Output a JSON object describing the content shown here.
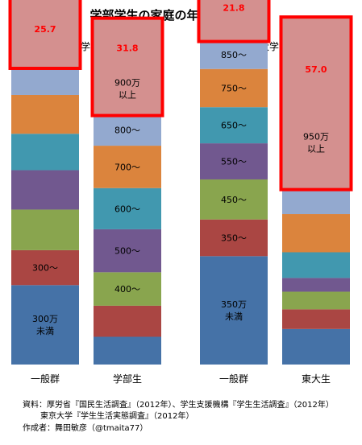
{
  "chart_data": {
    "type": "bar",
    "title": "学部学生の家庭の年収分布（%）",
    "groups": [
      {
        "label": "大学学部生",
        "bars": [
          "一般群",
          "学部生"
        ]
      },
      {
        "label": "東大学部生",
        "bars": [
          "一般群",
          "東大生"
        ]
      }
    ],
    "categories": [
      "一般群",
      "学部生",
      "一般群",
      "東大生"
    ],
    "segment_colors": [
      "#4572a7",
      "#aa4643",
      "#89a54e",
      "#71588f",
      "#4198af",
      "#db843d",
      "#93a9cf",
      "#d4908f"
    ],
    "bars": [
      {
        "category": "一般群",
        "segments": [
          {
            "label": "300万\n未満",
            "value": 26.6,
            "color": "#4572a7"
          },
          {
            "label": "300〜",
            "value": 11.7,
            "color": "#aa4643"
          },
          {
            "label": "",
            "value": 13.6,
            "color": "#89a54e"
          },
          {
            "label": "",
            "value": 13.2,
            "color": "#71588f"
          },
          {
            "label": "",
            "value": 12.2,
            "color": "#4198af"
          },
          {
            "label": "",
            "value": 13.0,
            "color": "#db843d"
          },
          {
            "label": "",
            "value": 9.3,
            "color": "#93a9cf"
          },
          {
            "label": "25.7",
            "value": 25.7,
            "color": "#d4908f",
            "highlight": true
          }
        ]
      },
      {
        "category": "学部生",
        "segments": [
          {
            "label": "",
            "value": 9.3,
            "color": "#4572a7"
          },
          {
            "label": "",
            "value": 10.4,
            "color": "#aa4643"
          },
          {
            "label": "400〜",
            "value": 11.2,
            "color": "#89a54e"
          },
          {
            "label": "500〜",
            "value": 14.4,
            "color": "#71588f"
          },
          {
            "label": "600〜",
            "value": 13.8,
            "color": "#4198af"
          },
          {
            "label": "700〜",
            "value": 14.2,
            "color": "#db843d"
          },
          {
            "label": "800〜",
            "value": 10.5,
            "color": "#93a9cf"
          },
          {
            "label": "31.8",
            "value": 31.8,
            "color": "#d4908f",
            "highlight": true,
            "sublabel": "900万\n以上"
          }
        ]
      },
      {
        "category": "一般群",
        "segments": [
          {
            "label": "350万\n未満",
            "value": 36.3,
            "color": "#4572a7"
          },
          {
            "label": "350〜",
            "value": 12.3,
            "color": "#aa4643"
          },
          {
            "label": "450〜",
            "value": 13.4,
            "color": "#89a54e"
          },
          {
            "label": "550〜",
            "value": 12.1,
            "color": "#71588f"
          },
          {
            "label": "650〜",
            "value": 12.1,
            "color": "#4198af"
          },
          {
            "label": "750〜",
            "value": 12.8,
            "color": "#db843d"
          },
          {
            "label": "850〜",
            "value": 9.6,
            "color": "#93a9cf"
          },
          {
            "label": "21.8",
            "value": 21.8,
            "color": "#d4908f",
            "highlight": true
          }
        ]
      },
      {
        "category": "東大生",
        "segments": [
          {
            "label": "",
            "value": 11.9,
            "color": "#4572a7"
          },
          {
            "label": "",
            "value": 6.6,
            "color": "#aa4643"
          },
          {
            "label": "",
            "value": 5.9,
            "color": "#89a54e"
          },
          {
            "label": "",
            "value": 4.6,
            "color": "#71588f"
          },
          {
            "label": "",
            "value": 8.6,
            "color": "#4198af"
          },
          {
            "label": "",
            "value": 12.8,
            "color": "#db843d"
          },
          {
            "label": "",
            "value": 8.6,
            "color": "#93a9cf"
          },
          {
            "label": "57.0",
            "value": 57.0,
            "color": "#d4908f",
            "highlight": true,
            "sublabel": "950万\n以上"
          }
        ]
      }
    ]
  },
  "source": {
    "line1": "資料：厚労省『国民生活調査』（2012年）、学生支援機構『学生生活調査』（2012年）",
    "line2": "東京大学『学生生活実態調査』（2012年）",
    "line3": "作成者：舞田敏彦（@tmaita77）"
  }
}
